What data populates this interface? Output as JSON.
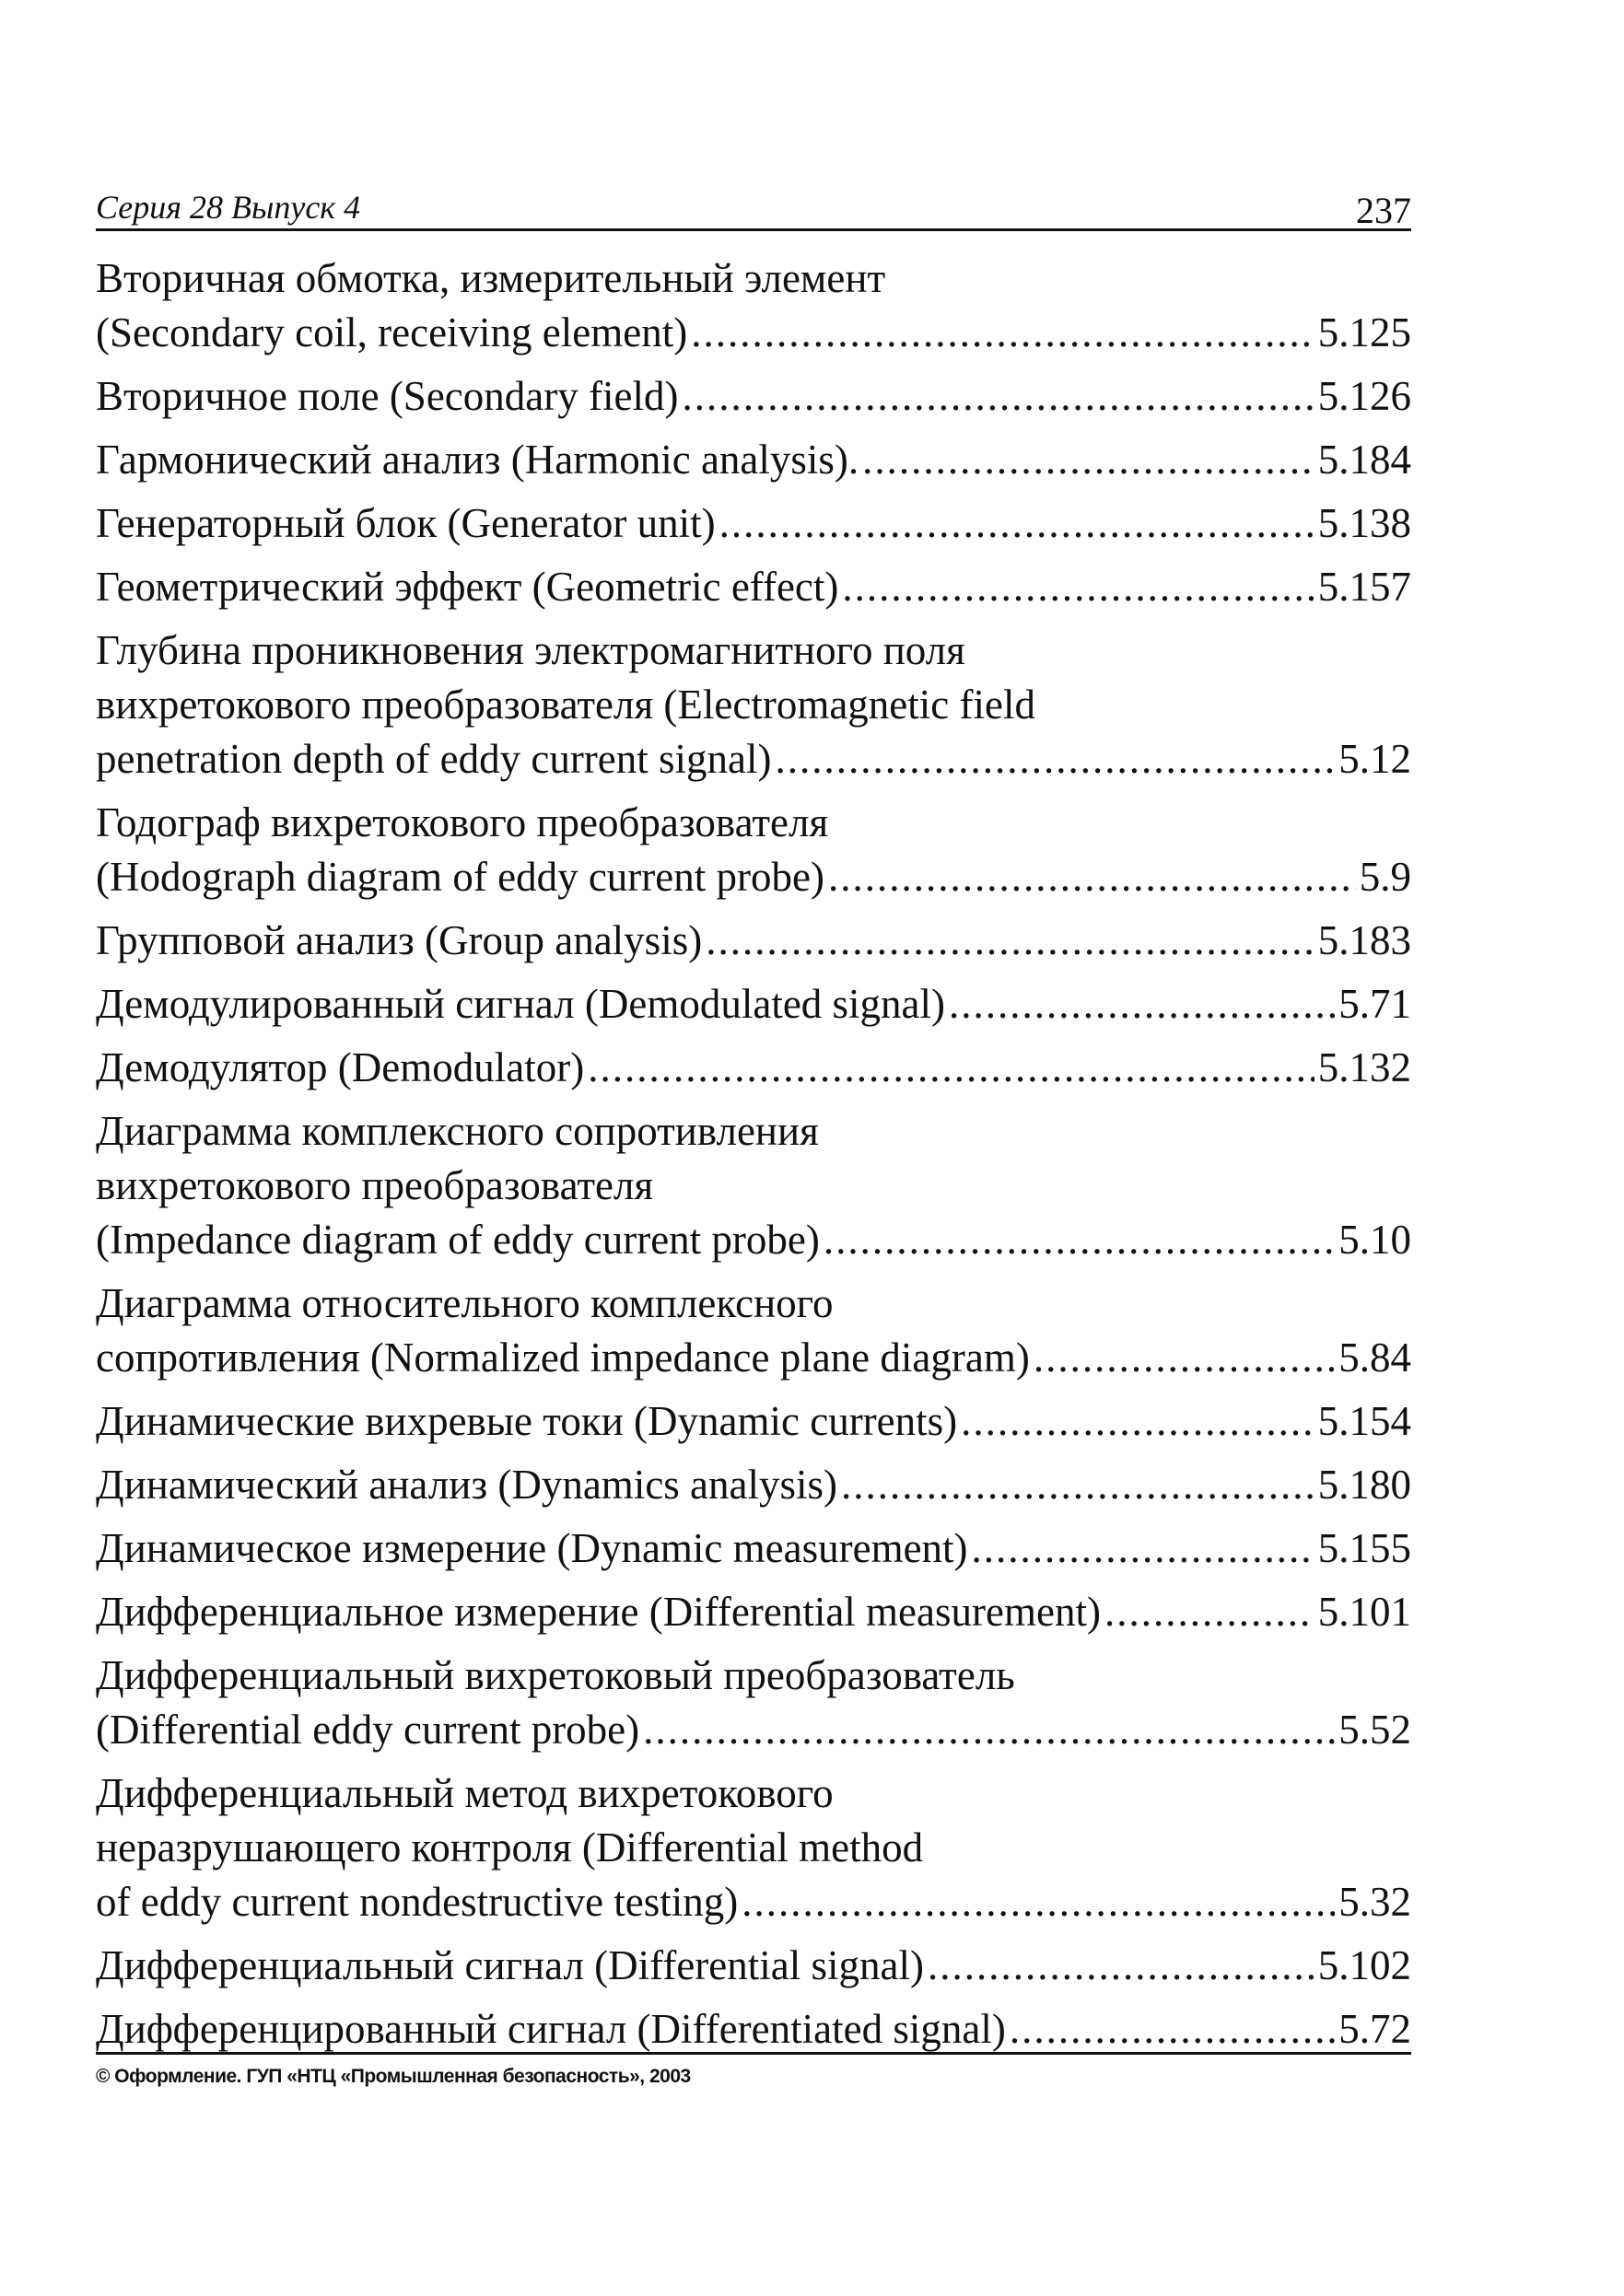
{
  "header": {
    "series": "Серия 28 Выпуск 4",
    "page_number": "237"
  },
  "entries": [
    {
      "lines": [
        "Вторичная обмотка, измерительный элемент",
        "(Secondary coil, receiving element)"
      ],
      "ref": "5.125"
    },
    {
      "lines": [
        "Вторичное поле (Secondary field)"
      ],
      "ref": "5.126"
    },
    {
      "lines": [
        "Гармонический анализ (Harmonic analysis)."
      ],
      "ref": "5.184"
    },
    {
      "lines": [
        "Генераторный блок (Generator unit)"
      ],
      "ref": "5.138"
    },
    {
      "lines": [
        "Геометрический эффект (Geometric effect)"
      ],
      "ref": "5.157"
    },
    {
      "lines": [
        "Глубина проникновения электромагнитного поля",
        "вихретокового преобразователя (Electromagnetic field",
        "penetration depth of eddy current signal)"
      ],
      "ref": "5.12"
    },
    {
      "lines": [
        "Годограф вихретокового преобразователя",
        "(Hodograph diagram of eddy current probe)"
      ],
      "ref": "5.9"
    },
    {
      "lines": [
        "Групповой анализ (Group analysis)"
      ],
      "ref": "5.183"
    },
    {
      "lines": [
        "Демодулированный сигнал (Demodulated signal)"
      ],
      "ref": "5.71"
    },
    {
      "lines": [
        "Демодулятор (Demodulator)"
      ],
      "ref": "5.132"
    },
    {
      "lines": [
        "Диаграмма комплексного сопротивления",
        "вихретокового преобразователя",
        "(Impedance diagram of eddy current probe)"
      ],
      "ref": "5.10"
    },
    {
      "lines": [
        "Диаграмма относительного комплексного",
        "сопротивления (Normalized impedance plane diagram)"
      ],
      "ref": "5.84"
    },
    {
      "lines": [
        "Динамические вихревые токи (Dynamic currents)"
      ],
      "ref": "5.154"
    },
    {
      "lines": [
        "Динамический анализ (Dynamics analysis)"
      ],
      "ref": "5.180"
    },
    {
      "lines": [
        "Динамическое измерение (Dynamic measurement)"
      ],
      "ref": "5.155"
    },
    {
      "lines": [
        "Дифференциальное измерение (Differential measurement)"
      ],
      "ref": "5.101"
    },
    {
      "lines": [
        "Дифференциальный вихретоковый преобразователь",
        "(Differential eddy current probe)"
      ],
      "ref": "5.52"
    },
    {
      "lines": [
        "Дифференциальный метод вихретокового",
        "неразрушающего контроля (Differential method",
        "of eddy current nondestructive testing)"
      ],
      "ref": "5.32"
    },
    {
      "lines": [
        "Дифференциальный сигнал (Differential signal)"
      ],
      "ref": "5.102"
    },
    {
      "lines": [
        "Дифференцированный сигнал (Differentiated signal)"
      ],
      "ref": "5.72"
    }
  ],
  "footer": {
    "copyright": "© Оформление. ГУП «НТЦ «Промышленная безопасность», 2003"
  }
}
